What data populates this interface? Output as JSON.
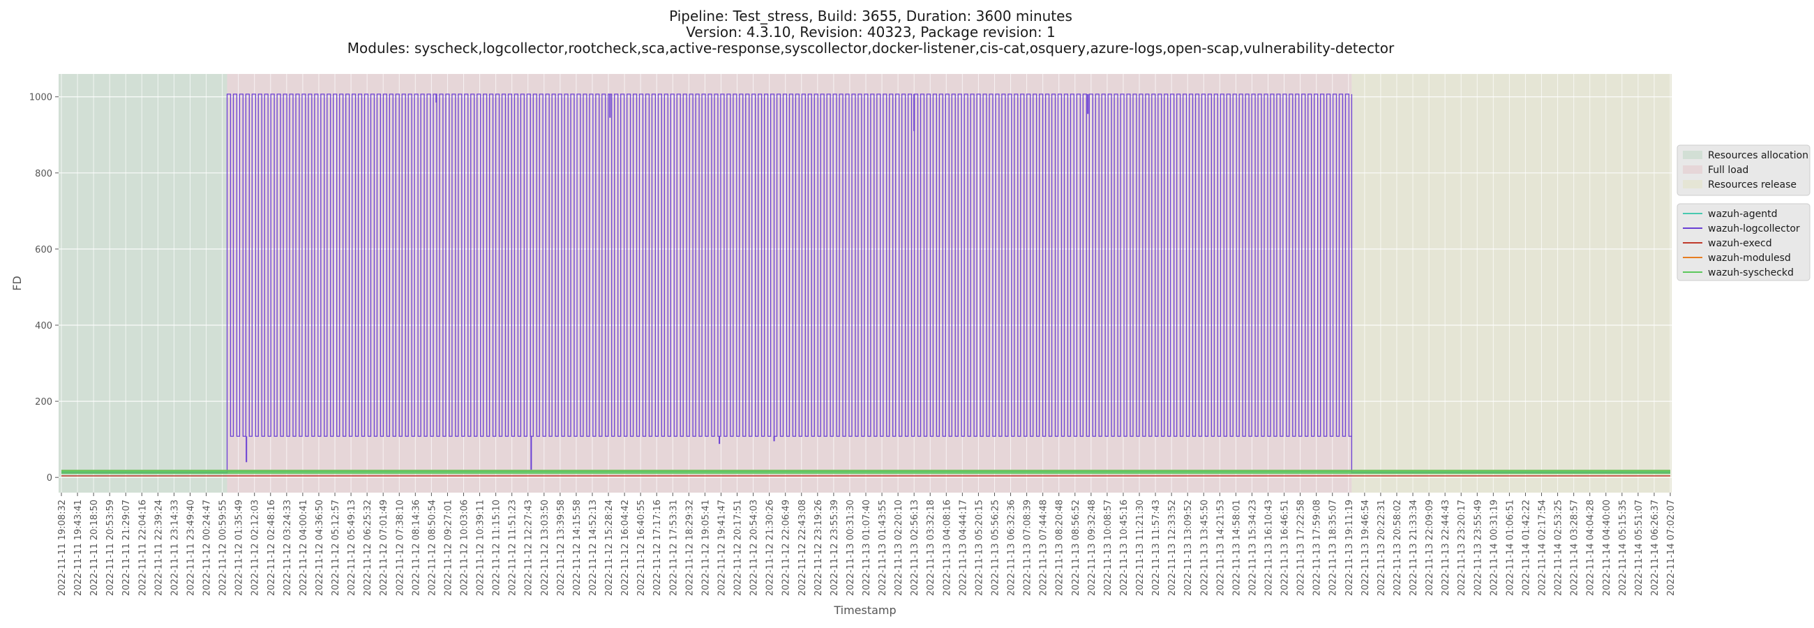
{
  "chart_data": {
    "type": "line",
    "title_lines": [
      "Pipeline: Test_stress, Build: 3655, Duration: 3600 minutes",
      "Version: 4.3.10, Revision: 40323, Package revision: 1",
      "Modules: syscheck,logcollector,rootcheck,sca,active-response,syscollector,docker-listener,cis-cat,osquery,azure-logs,open-scap,vulnerability-detector"
    ],
    "xlabel": "Timestamp",
    "ylabel": "FD",
    "ylim": [
      -40,
      1060
    ],
    "yticks": [
      0,
      200,
      400,
      600,
      800,
      1000
    ],
    "grid": true,
    "xticks": [
      "2022-11-11 19:08:32",
      "2022-11-11 19:43:41",
      "2022-11-11 20:18:50",
      "2022-11-11 20:53:59",
      "2022-11-11 21:29:07",
      "2022-11-11 22:04:16",
      "2022-11-11 22:39:24",
      "2022-11-11 23:14:33",
      "2022-11-11 23:49:40",
      "2022-11-12 00:24:47",
      "2022-11-12 00:59:55",
      "2022-11-12 01:35:49",
      "2022-11-12 02:12:03",
      "2022-11-12 02:48:16",
      "2022-11-12 03:24:33",
      "2022-11-12 04:00:41",
      "2022-11-12 04:36:50",
      "2022-11-12 05:12:57",
      "2022-11-12 05:49:13",
      "2022-11-12 06:25:32",
      "2022-11-12 07:01:49",
      "2022-11-12 07:38:10",
      "2022-11-12 08:14:36",
      "2022-11-12 08:50:54",
      "2022-11-12 09:27:01",
      "2022-11-12 10:03:06",
      "2022-11-12 10:39:11",
      "2022-11-12 11:15:10",
      "2022-11-12 11:51:23",
      "2022-11-12 12:27:43",
      "2022-11-12 13:03:50",
      "2022-11-12 13:39:58",
      "2022-11-12 14:15:58",
      "2022-11-12 14:52:13",
      "2022-11-12 15:28:24",
      "2022-11-12 16:04:42",
      "2022-11-12 16:40:55",
      "2022-11-12 17:17:16",
      "2022-11-12 17:53:31",
      "2022-11-12 18:29:32",
      "2022-11-12 19:05:41",
      "2022-11-12 19:41:47",
      "2022-11-12 20:17:51",
      "2022-11-12 20:54:03",
      "2022-11-12 21:30:26",
      "2022-11-12 22:06:49",
      "2022-11-12 22:43:08",
      "2022-11-12 23:19:26",
      "2022-11-12 23:55:39",
      "2022-11-13 00:31:30",
      "2022-11-13 01:07:40",
      "2022-11-13 01:43:55",
      "2022-11-13 02:20:10",
      "2022-11-13 02:56:13",
      "2022-11-13 03:32:18",
      "2022-11-13 04:08:16",
      "2022-11-13 04:44:17",
      "2022-11-13 05:20:15",
      "2022-11-13 05:56:25",
      "2022-11-13 06:32:36",
      "2022-11-13 07:08:39",
      "2022-11-13 07:44:48",
      "2022-11-13 08:20:48",
      "2022-11-13 08:56:52",
      "2022-11-13 09:32:48",
      "2022-11-13 10:08:57",
      "2022-11-13 10:45:16",
      "2022-11-13 11:21:30",
      "2022-11-13 11:57:43",
      "2022-11-13 12:33:52",
      "2022-11-13 13:09:52",
      "2022-11-13 13:45:50",
      "2022-11-13 14:21:53",
      "2022-11-13 14:58:01",
      "2022-11-13 15:34:23",
      "2022-11-13 16:10:43",
      "2022-11-13 16:46:51",
      "2022-11-13 17:22:58",
      "2022-11-13 17:59:08",
      "2022-11-13 18:35:07",
      "2022-11-13 19:11:19",
      "2022-11-13 19:46:54",
      "2022-11-13 20:22:31",
      "2022-11-13 20:58:02",
      "2022-11-13 21:33:34",
      "2022-11-13 22:09:09",
      "2022-11-13 22:44:43",
      "2022-11-13 23:20:17",
      "2022-11-13 23:55:49",
      "2022-11-14 00:31:19",
      "2022-11-14 01:06:51",
      "2022-11-14 01:42:22",
      "2022-11-14 02:17:54",
      "2022-11-14 02:53:25",
      "2022-11-14 03:28:57",
      "2022-11-14 04:04:28",
      "2022-11-14 04:40:00",
      "2022-11-14 05:15:35",
      "2022-11-14 05:51:07",
      "2022-11-14 06:26:37",
      "2022-11-14 07:02:07"
    ],
    "phases": [
      {
        "name": "Resources allocation",
        "start_tick": 0,
        "end_tick": 10.3,
        "color": "#d2dfd5"
      },
      {
        "name": "Full load",
        "start_tick": 10.3,
        "end_tick": 80.2,
        "color": "#e6d6d8"
      },
      {
        "name": "Resources release",
        "start_tick": 80.2,
        "end_tick": 100.6,
        "color": "#e5e5d5"
      }
    ],
    "series": [
      {
        "name": "wazuh-agentd",
        "color": "#48c9b0",
        "pattern": "flat",
        "value": 15
      },
      {
        "name": "wazuh-logcollector",
        "color": "#6a3fd4",
        "pattern": "square_wave",
        "baseline": 12,
        "start_tick": 10.3,
        "end_tick": 80.2,
        "low": 108,
        "high": 1007,
        "cycles": 180,
        "dips": [
          {
            "tick": 11.5,
            "value": 40
          },
          {
            "tick": 23.3,
            "value": 985
          },
          {
            "tick": 29.2,
            "value": 20
          },
          {
            "tick": 34.1,
            "value": 945
          },
          {
            "tick": 40.9,
            "value": 88
          },
          {
            "tick": 44.3,
            "value": 95
          },
          {
            "tick": 53.0,
            "value": 910
          },
          {
            "tick": 63.8,
            "value": 955
          }
        ]
      },
      {
        "name": "wazuh-execd",
        "color": "#c0392b",
        "pattern": "flat",
        "value": 4
      },
      {
        "name": "wazuh-modulesd",
        "color": "#e67e22",
        "pattern": "flat",
        "value": 18
      },
      {
        "name": "wazuh-syscheckd",
        "color": "#5cc85c",
        "pattern": "band",
        "low": 9,
        "high": 20
      }
    ],
    "legend_position": "right"
  }
}
